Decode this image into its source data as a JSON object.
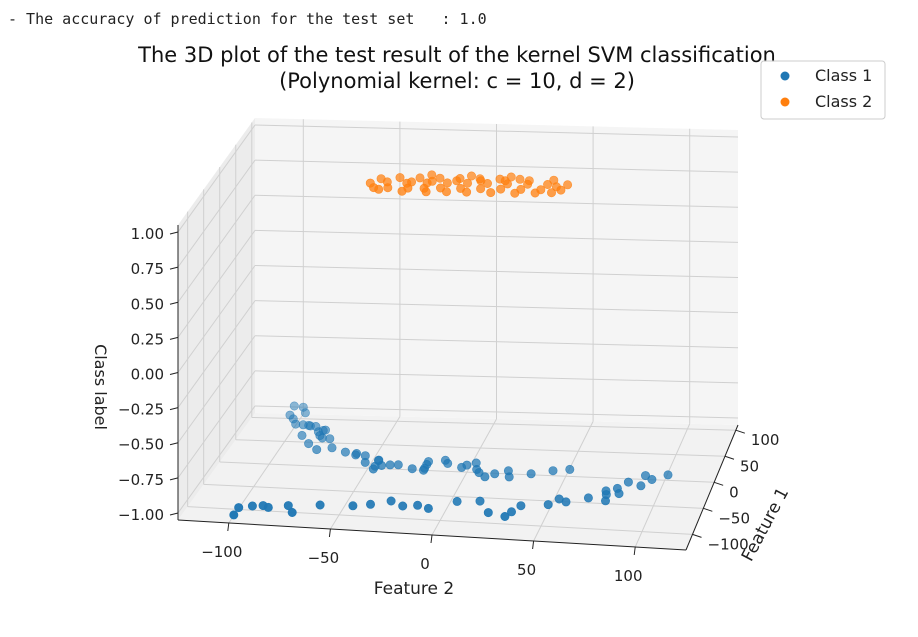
{
  "output": {
    "accuracy_line": "- The accuracy of prediction for the test set   : 1.0"
  },
  "chart_data": {
    "type": "scatter",
    "projection": "3d",
    "title": "The 3D plot of the test result of the kernel SVM classification\n(Polynomial kernel: c = 10, d = 2)",
    "title_lines": [
      "The 3D plot of the test result of the kernel SVM classification",
      "(Polynomial kernel: c = 10, d = 2)"
    ],
    "xlabel": "Feature 1",
    "ylabel": "Feature 2",
    "zlabel": "Class label",
    "x_ticks": [
      "−100",
      "−50",
      "0",
      "50",
      "100"
    ],
    "y_ticks": [
      "−100",
      "−50",
      "0",
      "50",
      "100"
    ],
    "z_ticks": [
      "−1.00",
      "−0.75",
      "−0.50",
      "−0.25",
      "0.00",
      "0.25",
      "0.50",
      "0.75",
      "1.00"
    ],
    "xlim": [
      -130,
      110
    ],
    "ylim": [
      -125,
      125
    ],
    "zlim": [
      -1.05,
      1.05
    ],
    "grid": true,
    "legend_position": "top-right",
    "series": [
      {
        "name": "Class 1",
        "color": "#1f77b4",
        "z": -1,
        "points": [
          [
            -127,
            -98
          ],
          [
            -111,
            -98
          ],
          [
            -106,
            -92
          ],
          [
            -104,
            -87
          ],
          [
            -107,
            -84
          ],
          [
            -101,
            -75
          ],
          [
            -115,
            -71
          ],
          [
            -96,
            -60
          ],
          [
            -94,
            -44
          ],
          [
            -89,
            -36
          ],
          [
            -80,
            -27
          ],
          [
            -89,
            -20
          ],
          [
            -86,
            -13
          ],
          [
            -91,
            -7
          ],
          [
            -74,
            5
          ],
          [
            -71,
            16
          ],
          [
            -93,
            23
          ],
          [
            -99,
            32
          ],
          [
            -89,
            34
          ],
          [
            -76,
            37
          ],
          [
            -71,
            50
          ],
          [
            -59,
            54
          ],
          [
            -64,
            58
          ],
          [
            -54,
            68
          ],
          [
            -39,
            75
          ],
          [
            -58,
            77
          ],
          [
            -46,
            76
          ],
          [
            -43,
            82
          ],
          [
            -33,
            80
          ],
          [
            -20,
            84
          ],
          [
            -6,
            91
          ],
          [
            -26,
            91
          ],
          [
            -13,
            95
          ],
          [
            -3,
            102
          ],
          [
            112,
            -105
          ],
          [
            110,
            -100
          ],
          [
            98,
            -97
          ],
          [
            92,
            -104
          ],
          [
            84,
            -101
          ],
          [
            73,
            -98
          ],
          [
            72,
            -94
          ],
          [
            71,
            -91
          ],
          [
            70,
            -90
          ],
          [
            69,
            -87
          ],
          [
            62,
            -81
          ],
          [
            61,
            -82
          ],
          [
            58,
            -84
          ],
          [
            49,
            -91
          ],
          [
            50,
            -82
          ],
          [
            45,
            -80
          ],
          [
            44,
            -76
          ],
          [
            32,
            -85
          ],
          [
            20,
            -79
          ],
          [
            25,
            -72
          ],
          [
            17,
            -64
          ],
          [
            12,
            -58
          ],
          [
            15,
            -58
          ],
          [
            11,
            -53
          ],
          [
            3,
            -45
          ],
          [
            2,
            -45
          ],
          [
            -3,
            -51
          ],
          [
            -16,
            -45
          ],
          [
            -10,
            -45
          ],
          [
            -8,
            -42
          ],
          [
            -6,
            -38
          ],
          [
            -5,
            -34
          ],
          [
            -12,
            -26
          ],
          [
            -14,
            -20
          ],
          [
            -10,
            -20
          ],
          [
            -2,
            -20
          ],
          [
            4,
            -20
          ],
          [
            8,
            -12
          ],
          [
            2,
            -10
          ],
          [
            -5,
            -2
          ],
          [
            0,
            0
          ],
          [
            5,
            4
          ],
          [
            -8,
            6
          ],
          [
            -14,
            8
          ],
          [
            -22,
            12
          ],
          [
            -15,
            16
          ],
          [
            -8,
            22
          ],
          [
            -20,
            24
          ],
          [
            -12,
            34
          ],
          [
            -4,
            44
          ],
          [
            0,
            52
          ]
        ]
      },
      {
        "name": "Class 2",
        "color": "#ff7f0e",
        "z": 1,
        "points": [
          [
            -15,
            -45
          ],
          [
            -14,
            -38
          ],
          [
            -13,
            -28
          ],
          [
            -12,
            -20
          ],
          [
            -10,
            -12
          ],
          [
            -9,
            -2
          ],
          [
            -8,
            8
          ],
          [
            -7,
            18
          ],
          [
            -6,
            28
          ],
          [
            -5,
            38
          ],
          [
            -4,
            48
          ],
          [
            -3,
            -30
          ],
          [
            -1,
            -20
          ],
          [
            1,
            -10
          ],
          [
            2,
            0
          ],
          [
            3,
            10
          ],
          [
            4,
            20
          ],
          [
            5,
            30
          ],
          [
            6,
            40
          ],
          [
            8,
            -35
          ],
          [
            9,
            -25
          ],
          [
            10,
            -15
          ],
          [
            11,
            -5
          ],
          [
            12,
            5
          ],
          [
            13,
            15
          ],
          [
            14,
            25
          ],
          [
            -18,
            -42
          ],
          [
            -20,
            -30
          ],
          [
            -19,
            -18
          ],
          [
            -17,
            -8
          ],
          [
            -16,
            2
          ],
          [
            -15,
            14
          ],
          [
            -14,
            26
          ],
          [
            -12,
            36
          ],
          [
            -10,
            44
          ],
          [
            7,
            50
          ],
          [
            2,
            45
          ],
          [
            -2,
            -40
          ],
          [
            0,
            -28
          ],
          [
            3,
            -18
          ],
          [
            6,
            -6
          ],
          [
            8,
            6
          ],
          [
            10,
            18
          ],
          [
            12,
            30
          ],
          [
            15,
            42
          ],
          [
            16,
            -20
          ],
          [
            17,
            0
          ],
          [
            18,
            20
          ],
          [
            -6,
            -48
          ],
          [
            4,
            -44
          ]
        ]
      }
    ]
  }
}
